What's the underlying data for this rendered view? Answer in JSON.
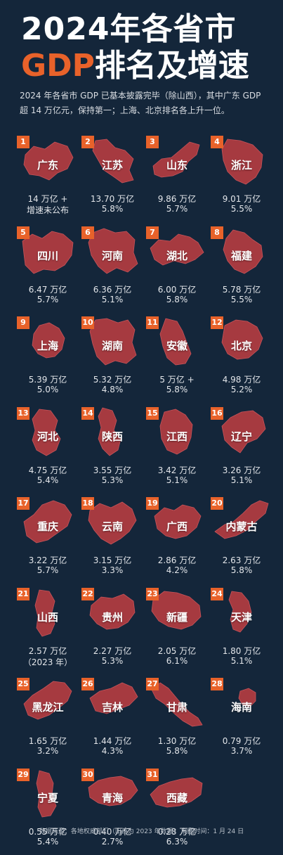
{
  "header": {
    "title_line1": "2024年各省市",
    "title_gdp": "GDP",
    "title_rest": "排名及增速",
    "subtitle": "2024 年各省市 GDP 已基本披露完毕（除山西），其中广东 GDP 超 14 万亿元，保持第一；上海、北京排名各上升一位。"
  },
  "footer": {
    "text": "数据来源：各地权威部门（山西为 2023 年数据）    制图时间：1 月 24 日"
  },
  "colors": {
    "background": "#14263a",
    "map_fill": "#a63a40",
    "rank_badge": "#e8622a"
  },
  "chart_data": {
    "type": "table",
    "title": "2024年各省市GDP排名及增速",
    "items": [
      {
        "rank": "1",
        "name": "广东",
        "line1": "14 万亿 +",
        "line2": "增速未公布"
      },
      {
        "rank": "2",
        "name": "江苏",
        "line1": "13.70 万亿",
        "line2": "5.8%"
      },
      {
        "rank": "3",
        "name": "山东",
        "line1": "9.86 万亿",
        "line2": "5.7%"
      },
      {
        "rank": "4",
        "name": "浙江",
        "line1": "9.01 万亿",
        "line2": "5.5%"
      },
      {
        "rank": "5",
        "name": "四川",
        "line1": "6.47 万亿",
        "line2": "5.7%"
      },
      {
        "rank": "6",
        "name": "河南",
        "line1": "6.36 万亿",
        "line2": "5.1%"
      },
      {
        "rank": "7",
        "name": "湖北",
        "line1": "6.00 万亿",
        "line2": "5.8%"
      },
      {
        "rank": "8",
        "name": "福建",
        "line1": "5.78 万亿",
        "line2": "5.5%"
      },
      {
        "rank": "9",
        "name": "上海",
        "line1": "5.39 万亿",
        "line2": "5.0%"
      },
      {
        "rank": "10",
        "name": "湖南",
        "line1": "5.32 万亿",
        "line2": "4.8%"
      },
      {
        "rank": "11",
        "name": "安徽",
        "line1": "5 万亿 +",
        "line2": "5.8%"
      },
      {
        "rank": "12",
        "name": "北京",
        "line1": "4.98 万亿",
        "line2": "5.2%"
      },
      {
        "rank": "13",
        "name": "河北",
        "line1": "4.75 万亿",
        "line2": "5.4%"
      },
      {
        "rank": "14",
        "name": "陕西",
        "line1": "3.55 万亿",
        "line2": "5.3%"
      },
      {
        "rank": "15",
        "name": "江西",
        "line1": "3.42 万亿",
        "line2": "5.1%"
      },
      {
        "rank": "16",
        "name": "辽宁",
        "line1": "3.26 万亿",
        "line2": "5.1%"
      },
      {
        "rank": "17",
        "name": "重庆",
        "line1": "3.22 万亿",
        "line2": "5.7%"
      },
      {
        "rank": "18",
        "name": "云南",
        "line1": "3.15 万亿",
        "line2": "3.3%"
      },
      {
        "rank": "19",
        "name": "广西",
        "line1": "2.86 万亿",
        "line2": "4.2%"
      },
      {
        "rank": "20",
        "name": "内蒙古",
        "line1": "2.63 万亿",
        "line2": "5.8%"
      },
      {
        "rank": "21",
        "name": "山西",
        "line1": "2.57 万亿",
        "line2": "（2023 年）"
      },
      {
        "rank": "22",
        "name": "贵州",
        "line1": "2.27 万亿",
        "line2": "5.3%"
      },
      {
        "rank": "23",
        "name": "新疆",
        "line1": "2.05 万亿",
        "line2": "6.1%"
      },
      {
        "rank": "24",
        "name": "天津",
        "line1": "1.80 万亿",
        "line2": "5.1%"
      },
      {
        "rank": "25",
        "name": "黑龙江",
        "line1": "1.65 万亿",
        "line2": "3.2%"
      },
      {
        "rank": "26",
        "name": "吉林",
        "line1": "1.44 万亿",
        "line2": "4.3%"
      },
      {
        "rank": "27",
        "name": "甘肃",
        "line1": "1.30 万亿",
        "line2": "5.8%"
      },
      {
        "rank": "28",
        "name": "海南",
        "line1": "0.79 万亿",
        "line2": "3.7%"
      },
      {
        "rank": "29",
        "name": "宁夏",
        "line1": "0.55 万亿",
        "line2": "5.4%"
      },
      {
        "rank": "30",
        "name": "青海",
        "line1": "0.40 万亿",
        "line2": "2.7%"
      },
      {
        "rank": "31",
        "name": "西藏",
        "line1": "0.28 万亿",
        "line2": "6.3%"
      }
    ]
  }
}
